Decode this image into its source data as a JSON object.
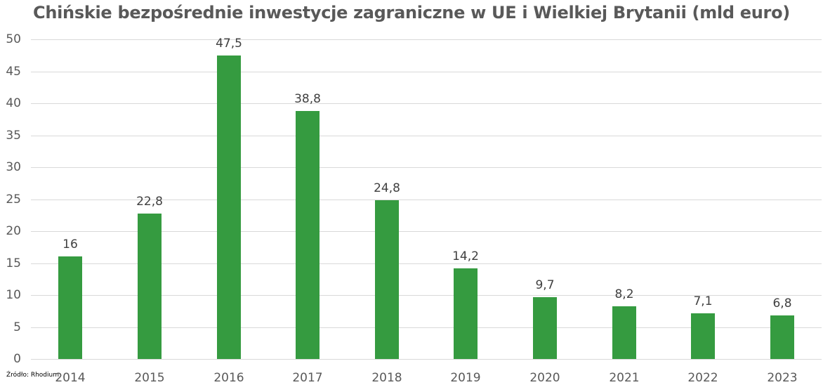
{
  "chart_data": {
    "type": "bar",
    "title": "Chińskie bezpośrednie inwestycje zagraniczne w UE i Wielkiej Brytanii (mld euro)",
    "xlabel": "",
    "ylabel": "",
    "categories": [
      "2014",
      "2015",
      "2016",
      "2017",
      "2018",
      "2019",
      "2020",
      "2021",
      "2022",
      "2023"
    ],
    "values": [
      16,
      22.8,
      47.5,
      38.8,
      24.8,
      14.2,
      9.7,
      8.2,
      7.1,
      6.8
    ],
    "value_labels": [
      "16",
      "22,8",
      "47,5",
      "38,8",
      "24,8",
      "14,2",
      "9,7",
      "8,2",
      "7,1",
      "6,8"
    ],
    "ylim": [
      0,
      50
    ],
    "yticks": [
      "0",
      "5",
      "10",
      "15",
      "20",
      "25",
      "30",
      "35",
      "40",
      "45",
      "50"
    ],
    "grid": true,
    "legend": null,
    "bar_color": "#359b40",
    "source": "Źródło: Rhodium"
  }
}
